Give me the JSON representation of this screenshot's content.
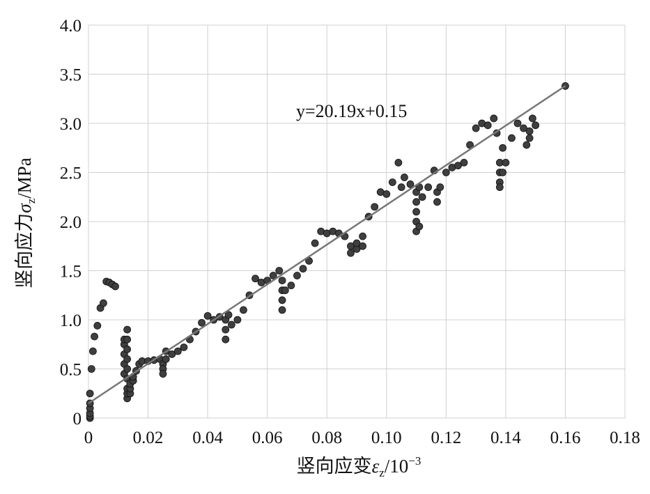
{
  "chart_data": {
    "type": "scatter",
    "x_label": {
      "text": "竖向应变",
      "symbol": "ε",
      "subscript": "z",
      "unit": "/10",
      "exponent": "−3"
    },
    "y_label": {
      "text": "竖向应力",
      "symbol": "σ",
      "subscript": "z",
      "unit": "/MPa"
    },
    "annotation": "y=20.19x+0.15",
    "trendline": {
      "slope": 20.19,
      "intercept": 0.15,
      "x_range": [
        0,
        0.16
      ],
      "color": "#777777"
    },
    "color": "#3f3f3f",
    "grid": true,
    "xlim": [
      0,
      0.18
    ],
    "ylim": [
      0,
      4
    ],
    "xticks": [
      0,
      0.02,
      0.04,
      0.06,
      0.08,
      {
        "value": 0.1,
        "label": "0.10"
      },
      0.12,
      0.14,
      0.16,
      0.18
    ],
    "yticks": [
      0,
      0.5,
      {
        "value": 1,
        "label": "1.0"
      },
      1.5,
      {
        "value": 2,
        "label": "2.0"
      },
      2.5,
      {
        "value": 3,
        "label": "3.0"
      },
      3.5,
      {
        "value": 4,
        "label": "4.0"
      }
    ],
    "x": [
      0.0005,
      0.0005,
      0.0005,
      0.0005,
      0.0005,
      0.0005,
      0.001,
      0.0015,
      0.002,
      0.003,
      0.004,
      0.005,
      0.006,
      0.007,
      0.008,
      0.009,
      0.012,
      0.012,
      0.012,
      0.012,
      0.012,
      0.013,
      0.013,
      0.013,
      0.013,
      0.013,
      0.013,
      0.013,
      0.013,
      0.013,
      0.014,
      0.014,
      0.014,
      0.015,
      0.015,
      0.016,
      0.017,
      0.018,
      0.02,
      0.022,
      0.024,
      0.025,
      0.025,
      0.025,
      0.026,
      0.026,
      0.028,
      0.03,
      0.032,
      0.034,
      0.036,
      0.038,
      0.04,
      0.042,
      0.044,
      0.046,
      0.046,
      0.046,
      0.047,
      0.048,
      0.05,
      0.052,
      0.054,
      0.056,
      0.058,
      0.06,
      0.062,
      0.064,
      0.065,
      0.065,
      0.065,
      0.065,
      0.066,
      0.068,
      0.07,
      0.072,
      0.074,
      0.076,
      0.078,
      0.08,
      0.082,
      0.084,
      0.086,
      0.088,
      0.088,
      0.09,
      0.09,
      0.092,
      0.092,
      0.094,
      0.096,
      0.098,
      0.1,
      0.102,
      0.104,
      0.105,
      0.106,
      0.108,
      0.11,
      0.11,
      0.11,
      0.11,
      0.11,
      0.111,
      0.111,
      0.112,
      0.114,
      0.116,
      0.117,
      0.117,
      0.118,
      0.12,
      0.122,
      0.124,
      0.126,
      0.128,
      0.13,
      0.132,
      0.134,
      0.136,
      0.137,
      0.138,
      0.138,
      0.138,
      0.138,
      0.139,
      0.139,
      0.14,
      0.142,
      0.144,
      0.146,
      0.147,
      0.148,
      0.148,
      0.149,
      0.15,
      0.16
    ],
    "y": [
      0,
      0.02,
      0.05,
      0.1,
      0.15,
      0.25,
      0.5,
      0.68,
      0.83,
      0.94,
      1.12,
      1.17,
      1.39,
      1.38,
      1.36,
      1.34,
      0.45,
      0.55,
      0.65,
      0.75,
      0.8,
      0.2,
      0.25,
      0.3,
      0.4,
      0.5,
      0.6,
      0.7,
      0.8,
      0.9,
      0.25,
      0.3,
      0.35,
      0.38,
      0.42,
      0.48,
      0.55,
      0.58,
      0.58,
      0.59,
      0.6,
      0.55,
      0.5,
      0.45,
      0.6,
      0.68,
      0.65,
      0.68,
      0.72,
      0.8,
      0.88,
      0.97,
      1.04,
      1,
      1.03,
      1,
      0.9,
      0.8,
      1.05,
      0.95,
      1,
      1.1,
      1.25,
      1.42,
      1.38,
      1.4,
      1.45,
      1.5,
      1.4,
      1.3,
      1.2,
      1.1,
      1.3,
      1.35,
      1.45,
      1.52,
      1.6,
      1.78,
      1.9,
      1.88,
      1.9,
      1.88,
      1.85,
      1.75,
      1.68,
      1.72,
      1.78,
      1.85,
      1.75,
      2.05,
      2.15,
      2.3,
      2.28,
      2.4,
      2.6,
      2.35,
      2.45,
      2.38,
      2.3,
      2.2,
      2.1,
      2,
      1.9,
      2.35,
      1.95,
      2.25,
      2.35,
      2.52,
      2.3,
      2.2,
      2.35,
      2.5,
      2.55,
      2.57,
      2.6,
      2.78,
      2.95,
      3,
      2.98,
      3.05,
      2.9,
      2.6,
      2.5,
      2.4,
      2.35,
      2.75,
      2.5,
      2.6,
      2.85,
      3,
      2.95,
      2.78,
      2.85,
      2.92,
      3.05,
      2.98,
      3.38
    ]
  }
}
